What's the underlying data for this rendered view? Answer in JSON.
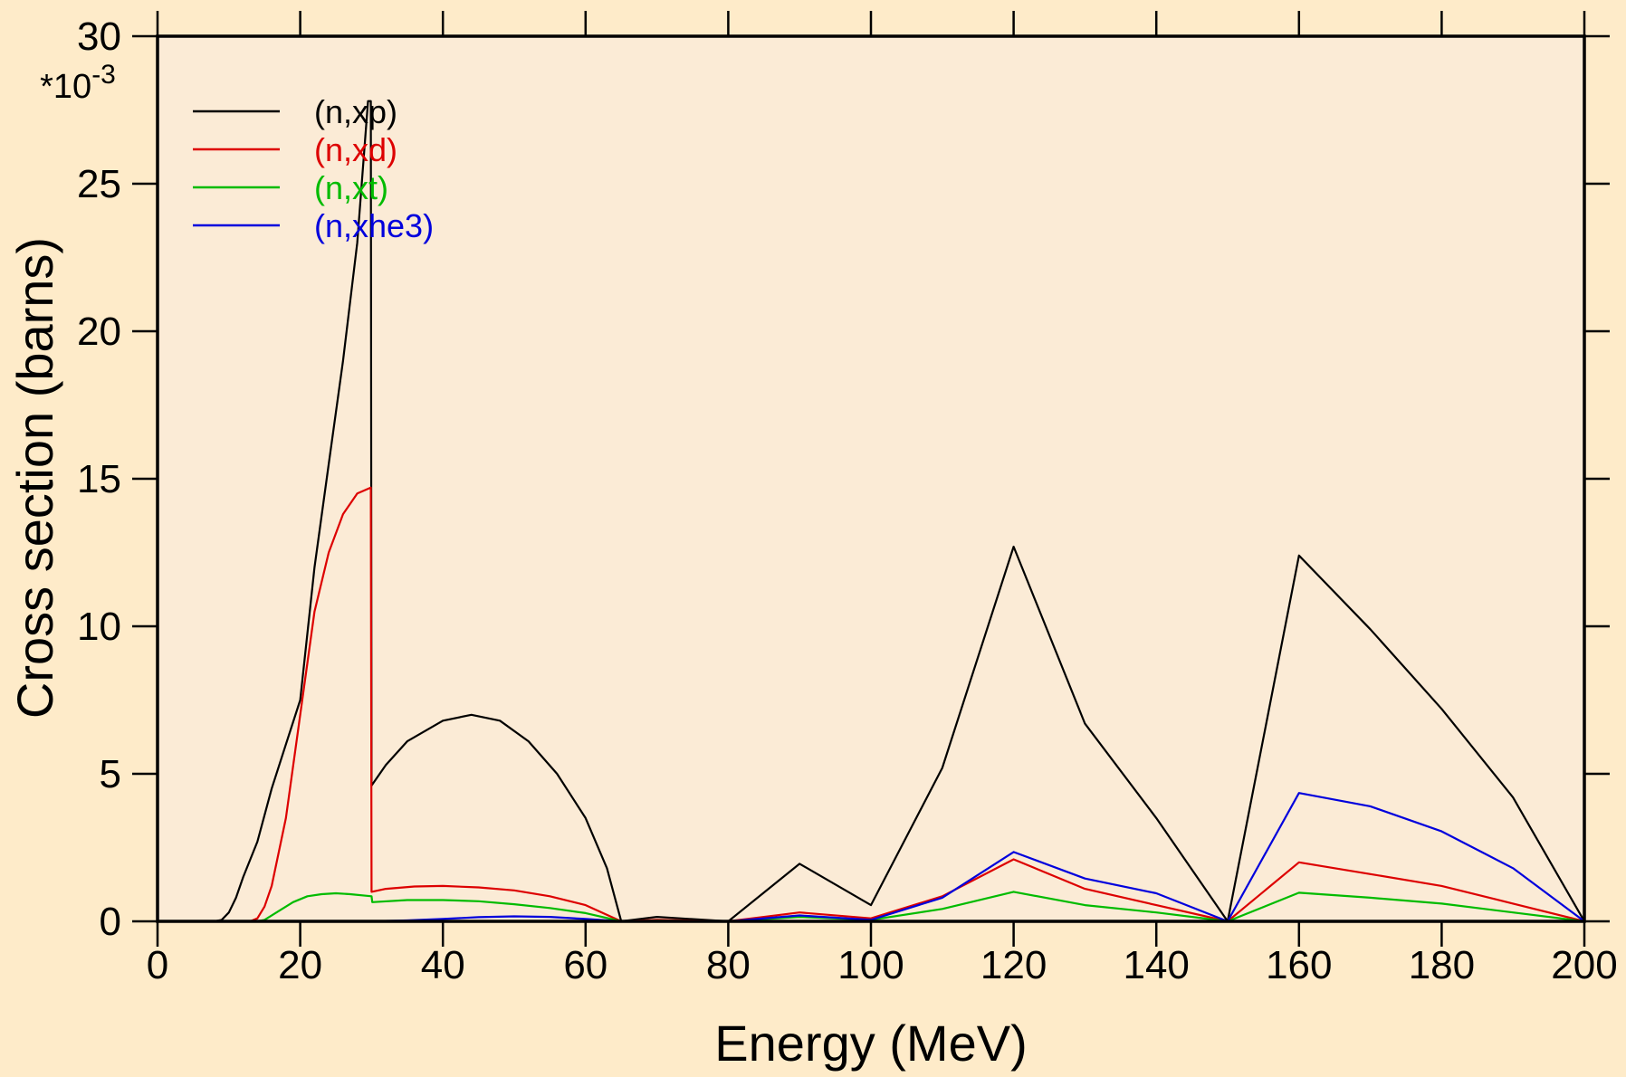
{
  "colors": {
    "page_background": "#feebc9",
    "plot_background": "#fbebd6",
    "axis": "#000000"
  },
  "chart_data": {
    "type": "line",
    "xlabel": "Energy (MeV)",
    "ylabel": "Cross section (barns)",
    "y_multiplier_label": "*10",
    "y_multiplier_exponent": "-3",
    "xlim": [
      0,
      200
    ],
    "ylim": [
      0,
      30
    ],
    "x_ticks": [
      0,
      20,
      40,
      60,
      80,
      100,
      120,
      140,
      160,
      180,
      200
    ],
    "x_tick_labels": [
      "0",
      "20",
      "40",
      "60",
      "80",
      "100",
      "120",
      "140",
      "160",
      "180",
      "200"
    ],
    "y_ticks": [
      0,
      5,
      10,
      15,
      20,
      25,
      30
    ],
    "y_tick_labels": [
      "0",
      "5",
      "10",
      "15",
      "20",
      "25",
      "30"
    ],
    "grid": false,
    "legend_position": "top-left",
    "series": [
      {
        "name": "(n,xp)",
        "color": "#000000",
        "points": [
          [
            0,
            0
          ],
          [
            8,
            0
          ],
          [
            9,
            0.05
          ],
          [
            10,
            0.3
          ],
          [
            11,
            0.8
          ],
          [
            12,
            1.5
          ],
          [
            14,
            2.7
          ],
          [
            16,
            4.5
          ],
          [
            18,
            6
          ],
          [
            20,
            7.5
          ],
          [
            22,
            12
          ],
          [
            24,
            15.5
          ],
          [
            26,
            19
          ],
          [
            28,
            23
          ],
          [
            29.5,
            27.8
          ],
          [
            29.9,
            27.8
          ],
          [
            30,
            4.6
          ],
          [
            32,
            5.3
          ],
          [
            35,
            6.1
          ],
          [
            40,
            6.8
          ],
          [
            44,
            7
          ],
          [
            48,
            6.8
          ],
          [
            52,
            6.1
          ],
          [
            56,
            5
          ],
          [
            60,
            3.5
          ],
          [
            63,
            1.8
          ],
          [
            65,
            0
          ],
          [
            70,
            0.15
          ],
          [
            80,
            0
          ],
          [
            90,
            1.95
          ],
          [
            100,
            0.55
          ],
          [
            110,
            5.2
          ],
          [
            120,
            12.7
          ],
          [
            130,
            6.7
          ],
          [
            140,
            3.5
          ],
          [
            150,
            0
          ],
          [
            160,
            12.4
          ],
          [
            170,
            9.9
          ],
          [
            180,
            7.2
          ],
          [
            190,
            4.2
          ],
          [
            200,
            0
          ]
        ]
      },
      {
        "name": "(n,xd)",
        "color": "#dd0000",
        "points": [
          [
            0,
            0
          ],
          [
            13,
            0
          ],
          [
            14,
            0.1
          ],
          [
            15,
            0.5
          ],
          [
            16,
            1.2
          ],
          [
            18,
            3.5
          ],
          [
            20,
            7
          ],
          [
            22,
            10.5
          ],
          [
            24,
            12.5
          ],
          [
            26,
            13.8
          ],
          [
            28,
            14.5
          ],
          [
            29.9,
            14.7
          ],
          [
            30,
            1
          ],
          [
            32,
            1.1
          ],
          [
            36,
            1.18
          ],
          [
            40,
            1.2
          ],
          [
            45,
            1.15
          ],
          [
            50,
            1.05
          ],
          [
            55,
            0.85
          ],
          [
            60,
            0.55
          ],
          [
            65,
            0
          ],
          [
            70,
            0.05
          ],
          [
            80,
            0
          ],
          [
            90,
            0.3
          ],
          [
            100,
            0.1
          ],
          [
            110,
            0.85
          ],
          [
            120,
            2.1
          ],
          [
            130,
            1.1
          ],
          [
            140,
            0.55
          ],
          [
            150,
            0
          ],
          [
            160,
            2
          ],
          [
            170,
            1.6
          ],
          [
            180,
            1.2
          ],
          [
            190,
            0.6
          ],
          [
            200,
            0
          ]
        ]
      },
      {
        "name": "(n,xt)",
        "color": "#00bb00",
        "points": [
          [
            0,
            0
          ],
          [
            14,
            0
          ],
          [
            15,
            0.05
          ],
          [
            17,
            0.35
          ],
          [
            19,
            0.65
          ],
          [
            21,
            0.85
          ],
          [
            23,
            0.92
          ],
          [
            25,
            0.95
          ],
          [
            27,
            0.92
          ],
          [
            30,
            0.85
          ],
          [
            30.1,
            0.65
          ],
          [
            35,
            0.72
          ],
          [
            40,
            0.72
          ],
          [
            45,
            0.68
          ],
          [
            50,
            0.58
          ],
          [
            55,
            0.45
          ],
          [
            60,
            0.28
          ],
          [
            65,
            0
          ],
          [
            70,
            0.02
          ],
          [
            80,
            0
          ],
          [
            90,
            0.15
          ],
          [
            100,
            0.05
          ],
          [
            110,
            0.42
          ],
          [
            120,
            1
          ],
          [
            130,
            0.55
          ],
          [
            140,
            0.3
          ],
          [
            150,
            0
          ],
          [
            160,
            0.97
          ],
          [
            170,
            0.8
          ],
          [
            180,
            0.6
          ],
          [
            190,
            0.3
          ],
          [
            200,
            0
          ]
        ]
      },
      {
        "name": "(n,xhe3)",
        "color": "#0000dd",
        "points": [
          [
            0,
            0
          ],
          [
            30,
            0
          ],
          [
            35,
            0.03
          ],
          [
            40,
            0.08
          ],
          [
            45,
            0.14
          ],
          [
            50,
            0.17
          ],
          [
            55,
            0.15
          ],
          [
            60,
            0.08
          ],
          [
            65,
            0
          ],
          [
            80,
            0
          ],
          [
            90,
            0.2
          ],
          [
            100,
            0.05
          ],
          [
            110,
            0.8
          ],
          [
            120,
            2.35
          ],
          [
            130,
            1.45
          ],
          [
            140,
            0.95
          ],
          [
            150,
            0
          ],
          [
            160,
            4.35
          ],
          [
            170,
            3.9
          ],
          [
            180,
            3.05
          ],
          [
            190,
            1.8
          ],
          [
            200,
            0
          ]
        ]
      }
    ]
  }
}
